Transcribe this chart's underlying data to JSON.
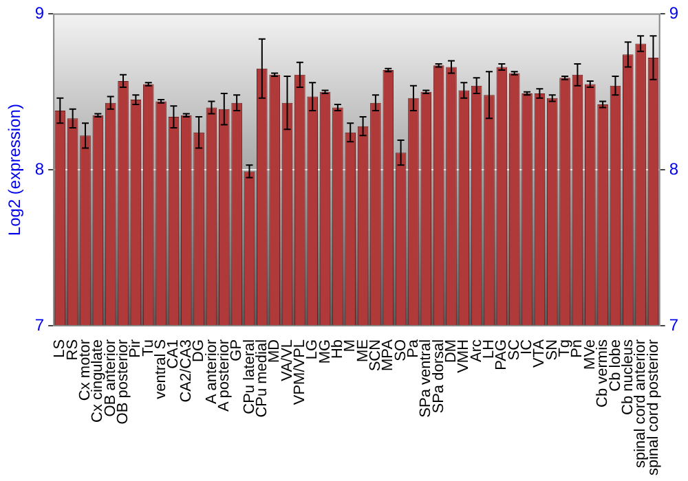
{
  "chart_data": {
    "type": "bar",
    "ylabel": "Log2 (expression)",
    "categories": [
      "LS",
      "RS",
      "Cx motor",
      "Cx cingulate",
      "OB anterior",
      "OB posterior",
      "Pir",
      "Tu",
      "ventral S",
      "CA1",
      "CA2/CA3",
      "DG",
      "A anterior",
      "A posterior",
      "GP",
      "CPu lateral",
      "CPu medial",
      "MD",
      "VA/VL",
      "VPM/VPL",
      "LG",
      "MG",
      "Hb",
      "M",
      "ME",
      "SCN",
      "MPA",
      "SO",
      "Pa",
      "SPa ventral",
      "SPa dorsal",
      "DM",
      "VMH",
      "Arc",
      "LH",
      "PAG",
      "SC",
      "IC",
      "VTA",
      "SN",
      "Tg",
      "Pn",
      "MVe",
      "Cb vermis",
      "Cb lobe",
      "Cb nucleus",
      "spinal cord anterior",
      "spinal cord posterior"
    ],
    "values": [
      8.38,
      8.33,
      8.22,
      8.35,
      8.43,
      8.57,
      8.45,
      8.55,
      8.44,
      8.34,
      8.35,
      8.24,
      8.4,
      8.39,
      8.43,
      7.99,
      8.65,
      8.61,
      8.43,
      8.61,
      8.47,
      8.5,
      8.4,
      8.24,
      8.28,
      8.43,
      8.64,
      8.11,
      8.46,
      8.5,
      8.67,
      8.66,
      8.51,
      8.54,
      8.48,
      8.66,
      8.62,
      8.49,
      8.49,
      8.46,
      8.59,
      8.61,
      8.55,
      8.42,
      8.54,
      8.74,
      8.81,
      8.72
    ],
    "errors": [
      0.08,
      0.06,
      0.08,
      0.01,
      0.04,
      0.04,
      0.03,
      0.01,
      0.01,
      0.07,
      0.01,
      0.1,
      0.04,
      0.1,
      0.05,
      0.04,
      0.19,
      0.01,
      0.17,
      0.08,
      0.09,
      0.01,
      0.02,
      0.06,
      0.06,
      0.05,
      0.01,
      0.08,
      0.08,
      0.01,
      0.01,
      0.04,
      0.05,
      0.05,
      0.15,
      0.02,
      0.01,
      0.01,
      0.03,
      0.02,
      0.01,
      0.07,
      0.02,
      0.02,
      0.06,
      0.08,
      0.05,
      0.14
    ],
    "color": "#b03a3a",
    "ylim": [
      7,
      9
    ],
    "yticks": [
      7,
      8,
      9
    ],
    "y2lim": [
      7,
      9
    ],
    "y2ticks": [
      7,
      8,
      9
    ],
    "grid": "y",
    "legend": false
  }
}
